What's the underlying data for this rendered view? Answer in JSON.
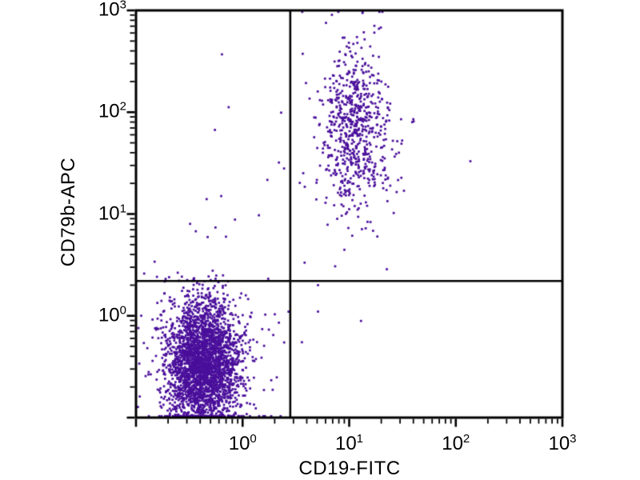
{
  "page": {
    "background_color": "#ffffff",
    "description_text": "Flow cytometry two-parameter dot plot with quadrant gates"
  },
  "chart_data": {
    "type": "scatter",
    "subtype": "flow-cytometry-dot-plot",
    "title": "",
    "xlabel": "CD19-FITC",
    "ylabel": "CD79b-APC",
    "x_scale": "log",
    "y_scale": "log",
    "xlim": [
      0.1,
      1000
    ],
    "ylim": [
      0.1,
      1000
    ],
    "grid": false,
    "legend": null,
    "axis_color": "#000000",
    "point_color": "#4a0f9b",
    "x_tick_labels": [
      {
        "base": "10",
        "exp": "0",
        "value": 1
      },
      {
        "base": "10",
        "exp": "1",
        "value": 10
      },
      {
        "base": "10",
        "exp": "2",
        "value": 100
      },
      {
        "base": "10",
        "exp": "3",
        "value": 1000
      }
    ],
    "y_tick_labels": [
      {
        "base": "10",
        "exp": "0",
        "value": 1
      },
      {
        "base": "10",
        "exp": "1",
        "value": 10
      },
      {
        "base": "10",
        "exp": "2",
        "value": 100
      },
      {
        "base": "10",
        "exp": "3",
        "value": 1000
      }
    ],
    "minor_tick_multiples": [
      2,
      3,
      4,
      5,
      6,
      7,
      8,
      9
    ],
    "quadrant_gates": {
      "x": 2.8,
      "y": 2.2
    },
    "populations": [
      {
        "name": "CD19- CD79b- double-negative core",
        "quadrant": "lower-left",
        "center_x": 0.42,
        "center_y": 0.34,
        "log_sigma_x": 0.17,
        "log_sigma_y": 0.3,
        "count": 2800
      },
      {
        "name": "double-negative diffuse halo",
        "quadrant": "lower-left",
        "center_x": 0.42,
        "center_y": 0.4,
        "log_sigma_x": 0.33,
        "log_sigma_y": 0.52,
        "count": 260
      },
      {
        "name": "CD19+ CD79b+ double-positive core",
        "quadrant": "upper-right",
        "center_x": 11.4,
        "center_y": 70,
        "log_sigma_x": 0.158,
        "log_sigma_y": 0.41,
        "count": 640
      },
      {
        "name": "double-positive diffuse halo",
        "quadrant": "upper-right",
        "center_x": 11.2,
        "center_y": 63,
        "log_sigma_x": 0.32,
        "log_sigma_y": 0.58,
        "count": 55
      }
    ],
    "outlier_points": [
      [
        0.64,
        370
      ],
      [
        0.74,
        112
      ],
      [
        0.55,
        67
      ],
      [
        2.3,
        99
      ],
      [
        2.45,
        28
      ],
      [
        0.46,
        14
      ],
      [
        0.63,
        15
      ],
      [
        137,
        33
      ],
      [
        5.1,
        2.0
      ],
      [
        5.1,
        1.1
      ],
      [
        12.9,
        0.89
      ],
      [
        3.6,
        0.55
      ],
      [
        20.5,
        1000
      ]
    ],
    "random_seed": 42
  }
}
